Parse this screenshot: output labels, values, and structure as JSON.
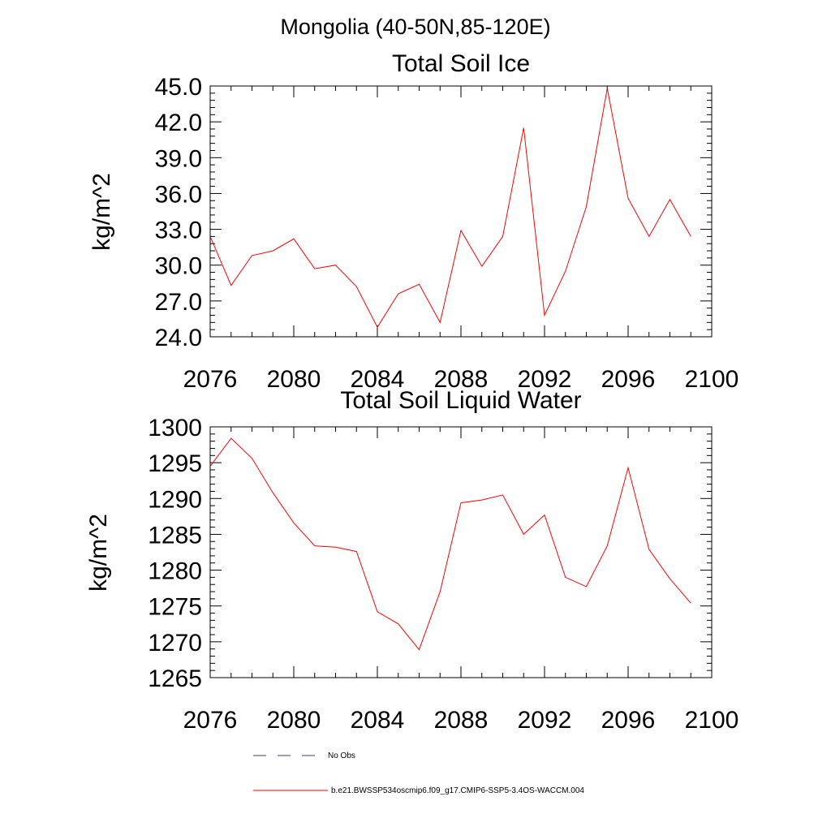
{
  "main_title": "Mongolia (40-50N,85-120E)",
  "legend": {
    "items": [
      {
        "label": "No Obs",
        "color": "#3b3b8a",
        "style": "dashed"
      },
      {
        "label": "b.e21.BWSSP534oscmip6.f09_g17.CMIP6-SSP5-3.4OS-WACCM.004",
        "color": "#ff0000",
        "style": "solid"
      }
    ]
  },
  "chart_data": [
    {
      "type": "line",
      "title": "Total Soil Ice",
      "xlabel": "",
      "ylabel": "kg/m^2",
      "xlim": [
        2076,
        2100
      ],
      "ylim": [
        24.0,
        45.0
      ],
      "xticks": [
        "2076",
        "2080",
        "2084",
        "2088",
        "2092",
        "2096",
        "2100"
      ],
      "yticks": [
        "24.0",
        "27.0",
        "30.0",
        "33.0",
        "36.0",
        "39.0",
        "42.0",
        "45.0"
      ],
      "series": [
        {
          "name": "b.e21.BWSSP534oscmip6.f09_g17.CMIP6-SSP5-3.4OS-WACCM.004",
          "color": "#ff0000",
          "x": [
            2076,
            2077,
            2078,
            2079,
            2080,
            2081,
            2082,
            2083,
            2084,
            2085,
            2086,
            2087,
            2088,
            2089,
            2090,
            2091,
            2092,
            2093,
            2094,
            2095,
            2096,
            2097,
            2098,
            2099
          ],
          "values": [
            32.4,
            28.3,
            30.8,
            31.2,
            32.2,
            29.7,
            30.0,
            28.2,
            24.8,
            27.6,
            28.4,
            25.2,
            32.9,
            29.9,
            32.4,
            41.5,
            25.8,
            29.5,
            34.9,
            44.8,
            35.6,
            32.4,
            35.5,
            32.4
          ]
        }
      ]
    },
    {
      "type": "line",
      "title": "Total Soil Liquid Water",
      "xlabel": "",
      "ylabel": "kg/m^2",
      "xlim": [
        2076,
        2100
      ],
      "ylim": [
        1265,
        1300
      ],
      "xticks": [
        "2076",
        "2080",
        "2084",
        "2088",
        "2092",
        "2096",
        "2100"
      ],
      "yticks": [
        "1265",
        "1270",
        "1275",
        "1280",
        "1285",
        "1290",
        "1295",
        "1300"
      ],
      "series": [
        {
          "name": "b.e21.BWSSP534oscmip6.f09_g17.CMIP6-SSP5-3.4OS-WACCM.004",
          "color": "#ff0000",
          "x": [
            2076,
            2077,
            2078,
            2079,
            2080,
            2081,
            2082,
            2083,
            2084,
            2085,
            2086,
            2087,
            2088,
            2089,
            2090,
            2091,
            2092,
            2093,
            2094,
            2095,
            2096,
            2097,
            2098,
            2099
          ],
          "values": [
            1294.5,
            1298.4,
            1295.6,
            1290.8,
            1286.6,
            1283.4,
            1283.2,
            1282.6,
            1274.2,
            1272.5,
            1268.9,
            1277.0,
            1289.4,
            1289.8,
            1290.5,
            1285.0,
            1287.7,
            1279.0,
            1277.7,
            1283.4,
            1294.3,
            1282.9,
            1278.8,
            1275.4
          ]
        }
      ]
    }
  ]
}
